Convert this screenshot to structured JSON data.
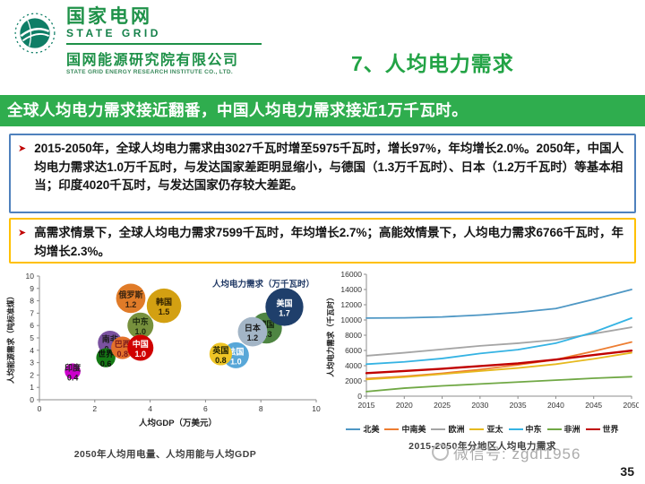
{
  "header": {
    "logo": {
      "brand_cn": "国家电网",
      "brand_en": "STATE GRID",
      "institute_cn": "国网能源研究院有限公司",
      "institute_en": "STATE GRID ENERGY RESEARCH INSTITUTE CO., LTD."
    },
    "title": "7、人均电力需求"
  },
  "banner": {
    "text": "全球人均电力需求接近翻番，中国人均电力需求接近1万千瓦时。"
  },
  "bullet_glyph": "➤",
  "boxes": [
    {
      "text": "2015-2050年，全球人均电力需求由3027千瓦时增至5975千瓦时，增长97%，年均增长2.0%。2050年，中国人均电力需求达1.0万千瓦时，与发达国家差距明显缩小，与德国（1.3万千瓦时）、日本（1.2万千瓦时）等基本相当；印度4020千瓦时，与发达国家仍存较大差距。",
      "border": "#4f81bd"
    },
    {
      "text": "高需求情景下，全球人均电力需求7599千瓦时，年均增长2.7%；高能效情景下，人均电力需求6766千瓦时，年均增长2.3%。",
      "border": "#ffc000"
    }
  ],
  "colors": {
    "banner_green": "#2fad4e",
    "title_green": "#22a345",
    "logo_green": "#1e9148",
    "bullet_red": "#c00000"
  },
  "chart_data": [
    {
      "type": "scatter",
      "title": "人均电力需求（万千瓦时）",
      "xlabel": "人均GDP（万美元）",
      "ylabel": "人均能源需求（吨标准煤）",
      "xlim": [
        0,
        10
      ],
      "ylim": [
        0,
        10
      ],
      "xticks": [
        0,
        2,
        4,
        6,
        8,
        10
      ],
      "yticks": [
        0,
        1,
        2,
        3,
        4,
        5,
        6,
        7,
        8,
        9,
        10
      ],
      "caption": "2050年人均用电量、人均用能与人均GDP",
      "points": [
        {
          "name": "俄罗斯",
          "value": 1.2,
          "x": 3.3,
          "y": 8.2,
          "color": "#e07b28",
          "text_color": "#3a2410"
        },
        {
          "name": "韩国",
          "value": 1.5,
          "x": 4.5,
          "y": 7.6,
          "color": "#d3a012",
          "text_color": "#332200"
        },
        {
          "name": "中东",
          "value": 1.0,
          "x": 3.65,
          "y": 6.0,
          "color": "#77913d",
          "text_color": "#1c2a0e"
        },
        {
          "name": "南非",
          "value": 0.9,
          "x": 2.55,
          "y": 4.6,
          "color": "#7a52a0",
          "text_color": "#1a1a1a"
        },
        {
          "name": "世界",
          "value": 0.6,
          "x": 2.4,
          "y": 3.4,
          "color": "#157a15",
          "text_color": "#0a0a0a"
        },
        {
          "name": "巴西",
          "value": 0.8,
          "x": 3.0,
          "y": 4.2,
          "color": "#e3712b",
          "text_color": "#7b1a1a"
        },
        {
          "name": "中国",
          "value": 1.0,
          "x": 3.65,
          "y": 4.2,
          "color": "#d00000",
          "text_color": "#ffffff"
        },
        {
          "name": "印度",
          "value": 0.4,
          "x": 1.2,
          "y": 2.3,
          "color": "#cc00cc",
          "text_color": "#222222"
        },
        {
          "name": "德国",
          "value": 1.3,
          "x": 8.2,
          "y": 5.8,
          "color": "#4e8542",
          "text_color": "#14240e"
        },
        {
          "name": "日本",
          "value": 1.2,
          "x": 7.7,
          "y": 5.5,
          "color": "#a3b5c6",
          "text_color": "#1a1a1a"
        },
        {
          "name": "法国",
          "value": 1.0,
          "x": 7.1,
          "y": 3.6,
          "color": "#58a7d8",
          "text_color": "#ffffff"
        },
        {
          "name": "英国",
          "value": 0.8,
          "x": 6.55,
          "y": 3.7,
          "color": "#eec526",
          "text_color": "#222200"
        },
        {
          "name": "美国",
          "value": 1.7,
          "x": 8.85,
          "y": 7.5,
          "color": "#1f3f6b",
          "text_color": "#ffffff"
        }
      ]
    },
    {
      "type": "line",
      "ylabel": "人均电力需求（千瓦时）",
      "ylim": [
        0,
        16000
      ],
      "ytick_step": 2000,
      "x": [
        2015,
        2020,
        2025,
        2030,
        2035,
        2040,
        2045,
        2050
      ],
      "series": [
        {
          "name": "北美",
          "color": "#4e97c4",
          "values": [
            10250,
            10280,
            10400,
            10650,
            11000,
            11500,
            12700,
            14000
          ]
        },
        {
          "name": "中南美",
          "color": "#ed7d31",
          "values": [
            2300,
            2600,
            3000,
            3500,
            4100,
            4800,
            5900,
            7100
          ]
        },
        {
          "name": "欧洲",
          "color": "#a5a5a5",
          "values": [
            5300,
            5700,
            6150,
            6600,
            6950,
            7400,
            8200,
            9050
          ]
        },
        {
          "name": "亚太",
          "color": "#e6b91e",
          "values": [
            2200,
            2500,
            2900,
            3300,
            3700,
            4200,
            4900,
            5700
          ]
        },
        {
          "name": "中东",
          "color": "#35b3e3",
          "values": [
            4200,
            4500,
            4950,
            5600,
            6100,
            6950,
            8400,
            10250
          ]
        },
        {
          "name": "非洲",
          "color": "#70a845",
          "values": [
            600,
            1050,
            1350,
            1600,
            1850,
            2100,
            2350,
            2550
          ]
        },
        {
          "name": "世界",
          "color": "#c00000",
          "values": [
            3027,
            3300,
            3600,
            3950,
            4300,
            4800,
            5400,
            5975
          ]
        }
      ],
      "legend_position": "bottom",
      "caption": "2015-2050年分地区人均电力需求"
    }
  ],
  "watermark": "微信号: zgdl1956",
  "page_number": "35"
}
